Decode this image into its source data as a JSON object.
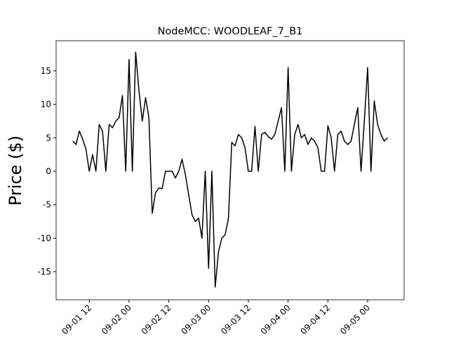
{
  "chart_data": {
    "type": "line",
    "title": "NodeMCC: WOODLEAF_7_B1",
    "y_label": "Price ($)",
    "x": [
      "09-01 07",
      "09-01 08",
      "09-01 09",
      "09-01 10",
      "09-01 11",
      "09-01 12",
      "09-01 13",
      "09-01 14",
      "09-01 15",
      "09-01 16",
      "09-01 17",
      "09-01 18",
      "09-01 19",
      "09-01 20",
      "09-01 21",
      "09-01 22",
      "09-01 23",
      "09-02 00",
      "09-02 01",
      "09-02 02",
      "09-02 03",
      "09-02 04",
      "09-02 05",
      "09-02 06",
      "09-02 07",
      "09-02 08",
      "09-02 09",
      "09-02 10",
      "09-02 11",
      "09-02 12",
      "09-02 13",
      "09-02 14",
      "09-02 15",
      "09-02 16",
      "09-02 17",
      "09-02 18",
      "09-02 19",
      "09-02 20",
      "09-02 21",
      "09-02 22",
      "09-02 23",
      "09-03 00",
      "09-03 01",
      "09-03 02",
      "09-03 03",
      "09-03 04",
      "09-03 05",
      "09-03 06",
      "09-03 07",
      "09-03 08",
      "09-03 09",
      "09-03 10",
      "09-03 11",
      "09-03 12",
      "09-03 13",
      "09-03 14",
      "09-03 15",
      "09-03 16",
      "09-03 17",
      "09-03 18",
      "09-03 19",
      "09-03 20",
      "09-03 21",
      "09-03 22",
      "09-03 23",
      "09-04 00",
      "09-04 01",
      "09-04 02",
      "09-04 03",
      "09-04 04",
      "09-04 05",
      "09-04 06",
      "09-04 07",
      "09-04 08",
      "09-04 09",
      "09-04 10",
      "09-04 11",
      "09-04 12",
      "09-04 13",
      "09-04 14",
      "09-04 15",
      "09-04 16",
      "09-04 17",
      "09-04 18",
      "09-04 19",
      "09-04 20",
      "09-04 21",
      "09-04 22",
      "09-04 23",
      "09-05 00",
      "09-05 01",
      "09-05 02",
      "09-05 03",
      "09-05 04",
      "09-05 05",
      "09-05 06"
    ],
    "series": [
      {
        "color": "#000000",
        "values": [
          4.5,
          4.0,
          6.0,
          4.8,
          3.3,
          0,
          2.5,
          0,
          7.0,
          6.0,
          0,
          7.0,
          6.5,
          7.5,
          8.0,
          11.3,
          0,
          16.7,
          0,
          17.8,
          12.0,
          7.5,
          11.0,
          8.0,
          -6.3,
          -3.2,
          -2.5,
          -2.6,
          0,
          0,
          0,
          -1.0,
          0,
          1.8,
          -0.5,
          -3.5,
          -6.5,
          -7.5,
          -7.0,
          -10.0,
          0,
          -14.5,
          0,
          -17.3,
          -12.0,
          -10.0,
          -9.5,
          -7.0,
          4.3,
          3.8,
          5.5,
          5.0,
          3.5,
          0,
          0,
          6.7,
          0,
          5.5,
          5.8,
          5.2,
          4.8,
          5.5,
          7.5,
          9.5,
          0,
          15.5,
          0,
          5.5,
          7.0,
          5.0,
          5.5,
          4.0,
          5.0,
          4.5,
          3.5,
          0,
          0,
          6.8,
          5.0,
          0,
          5.5,
          6.0,
          4.5,
          4.0,
          4.5,
          7.0,
          9.5,
          0,
          7.5,
          15.5,
          0,
          10.5,
          7.0,
          5.5,
          4.5,
          5.0
        ]
      }
    ],
    "xlim": [
      "09-01 02",
      "09-05 11"
    ],
    "xticks": [
      "09-01 12",
      "09-02 00",
      "09-02 12",
      "09-03 00",
      "09-03 12",
      "09-04 00",
      "09-04 12",
      "09-05 00"
    ],
    "ylim": [
      -19.2,
      19.5
    ],
    "yticks": [
      -15,
      -10,
      -5,
      0,
      5,
      10,
      15
    ]
  }
}
